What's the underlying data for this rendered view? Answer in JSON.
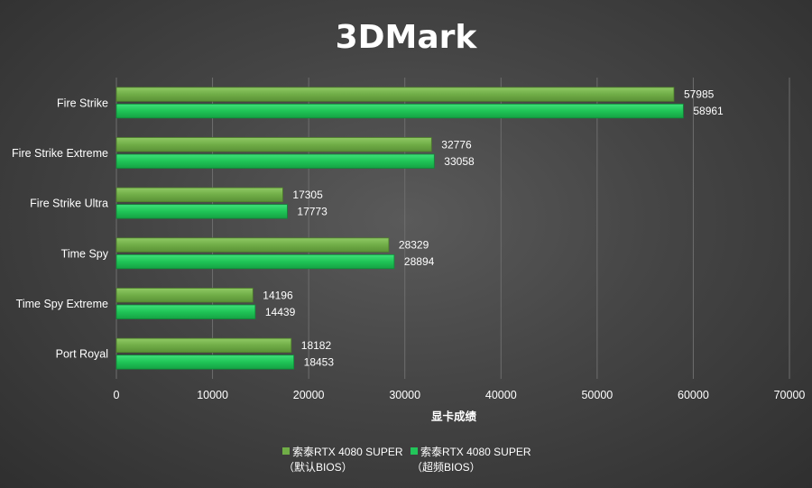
{
  "chart_data": {
    "type": "bar",
    "orientation": "horizontal",
    "title": "3DMark",
    "xlabel": "显卡成绩",
    "ylabel": "",
    "xlim": [
      0,
      70000
    ],
    "x_ticks": [
      "0",
      "10000",
      "20000",
      "30000",
      "40000",
      "50000",
      "60000",
      "70000"
    ],
    "grid": "vertical",
    "legend_position": "bottom",
    "categories": [
      "Fire Strike",
      "Fire Strike Extreme",
      "Fire Strike Ultra",
      "Time Spy",
      "Time Spy Extreme",
      "Port Royal"
    ],
    "series": [
      {
        "name_line1": "索泰RTX 4080 SUPER",
        "name_line2": "（默认BIOS）",
        "color": "#70ad47",
        "values": [
          57985,
          32776,
          17305,
          28329,
          14196,
          18182
        ],
        "labels": [
          "57985",
          "32776",
          "17305",
          "28329",
          "14196",
          "18182"
        ]
      },
      {
        "name_line1": "索泰RTX 4080 SUPER",
        "name_line2": "（超频BIOS）",
        "color": "#22c55a",
        "values": [
          58961,
          33058,
          17773,
          28894,
          14439,
          18453
        ],
        "labels": [
          "58961",
          "33058",
          "17773",
          "28894",
          "14439",
          "18453"
        ]
      }
    ]
  }
}
